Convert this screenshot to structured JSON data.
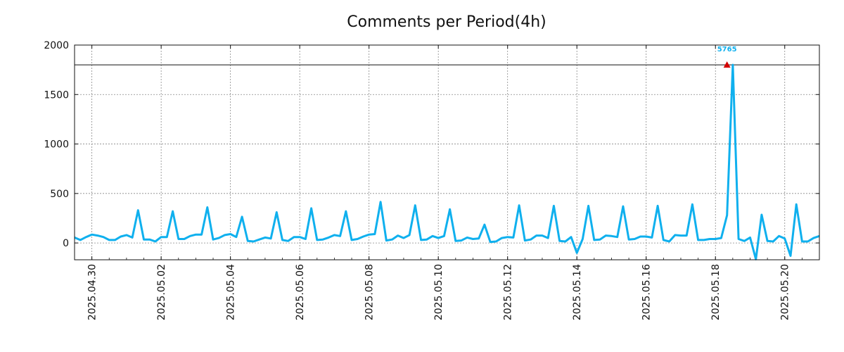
{
  "chart_data": {
    "type": "line",
    "title": "Comments per Period(4h)",
    "xlabel": "",
    "ylabel": "",
    "interval_hours": 4,
    "x_start": "2025-04-29 12:00",
    "x_end": "2025-05-21 00:00",
    "ylim": [
      -170,
      2000
    ],
    "yticks": [
      0,
      500,
      1000,
      1500,
      2000
    ],
    "xticks": [
      "2025.04.30",
      "2025.05.02",
      "2025.05.04",
      "2025.05.06",
      "2025.05.08",
      "2025.05.10",
      "2025.05.12",
      "2025.05.14",
      "2025.05.16",
      "2025.05.18",
      "2025.05.20"
    ],
    "grid": true,
    "cap_line": 1800,
    "series": [
      {
        "color": "#0fb0ee",
        "x": [
          "2025-04-29 12:00",
          "2025-04-29 16:00",
          "2025-04-29 20:00",
          "2025-04-30 00:00",
          "2025-04-30 04:00",
          "2025-04-30 08:00",
          "2025-04-30 12:00",
          "2025-04-30 16:00",
          "2025-04-30 20:00",
          "2025-05-01 00:00",
          "2025-05-01 04:00",
          "2025-05-01 08:00",
          "2025-05-01 12:00",
          "2025-05-01 16:00",
          "2025-05-01 20:00",
          "2025-05-02 00:00",
          "2025-05-02 04:00",
          "2025-05-02 08:00",
          "2025-05-02 12:00",
          "2025-05-02 16:00",
          "2025-05-02 20:00",
          "2025-05-03 00:00",
          "2025-05-03 04:00",
          "2025-05-03 08:00",
          "2025-05-03 12:00",
          "2025-05-03 16:00",
          "2025-05-03 20:00",
          "2025-05-04 00:00",
          "2025-05-04 04:00",
          "2025-05-04 08:00",
          "2025-05-04 12:00",
          "2025-05-04 16:00",
          "2025-05-04 20:00",
          "2025-05-05 00:00",
          "2025-05-05 04:00",
          "2025-05-05 08:00",
          "2025-05-05 12:00",
          "2025-05-05 16:00",
          "2025-05-05 20:00",
          "2025-05-06 00:00",
          "2025-05-06 04:00",
          "2025-05-06 08:00",
          "2025-05-06 12:00",
          "2025-05-06 16:00",
          "2025-05-06 20:00",
          "2025-05-07 00:00",
          "2025-05-07 04:00",
          "2025-05-07 08:00",
          "2025-05-07 12:00",
          "2025-05-07 16:00",
          "2025-05-07 20:00",
          "2025-05-08 00:00",
          "2025-05-08 04:00",
          "2025-05-08 08:00",
          "2025-05-08 12:00",
          "2025-05-08 16:00",
          "2025-05-08 20:00",
          "2025-05-09 00:00",
          "2025-05-09 04:00",
          "2025-05-09 08:00",
          "2025-05-09 12:00",
          "2025-05-09 16:00",
          "2025-05-09 20:00",
          "2025-05-10 00:00",
          "2025-05-10 04:00",
          "2025-05-10 08:00",
          "2025-05-10 12:00",
          "2025-05-10 16:00",
          "2025-05-10 20:00",
          "2025-05-11 00:00",
          "2025-05-11 04:00",
          "2025-05-11 08:00",
          "2025-05-11 12:00",
          "2025-05-11 16:00",
          "2025-05-11 20:00",
          "2025-05-12 00:00",
          "2025-05-12 04:00",
          "2025-05-12 08:00",
          "2025-05-12 12:00",
          "2025-05-12 16:00",
          "2025-05-12 20:00",
          "2025-05-13 00:00",
          "2025-05-13 04:00",
          "2025-05-13 08:00",
          "2025-05-13 12:00",
          "2025-05-13 16:00",
          "2025-05-13 20:00",
          "2025-05-14 00:00",
          "2025-05-14 04:00",
          "2025-05-14 08:00",
          "2025-05-14 12:00",
          "2025-05-14 16:00",
          "2025-05-14 20:00",
          "2025-05-15 00:00",
          "2025-05-15 04:00",
          "2025-05-15 08:00",
          "2025-05-15 12:00",
          "2025-05-15 16:00",
          "2025-05-15 20:00",
          "2025-05-16 00:00",
          "2025-05-16 04:00",
          "2025-05-16 08:00",
          "2025-05-16 12:00",
          "2025-05-16 16:00",
          "2025-05-16 20:00",
          "2025-05-17 00:00",
          "2025-05-17 04:00",
          "2025-05-17 08:00",
          "2025-05-17 12:00",
          "2025-05-17 16:00",
          "2025-05-17 20:00",
          "2025-05-18 00:00",
          "2025-05-18 04:00",
          "2025-05-18 08:00",
          "2025-05-18 12:00",
          "2025-05-18 16:00",
          "2025-05-18 20:00",
          "2025-05-19 00:00",
          "2025-05-19 04:00",
          "2025-05-19 08:00",
          "2025-05-19 12:00",
          "2025-05-19 16:00",
          "2025-05-19 20:00",
          "2025-05-20 00:00",
          "2025-05-20 04:00",
          "2025-05-20 08:00",
          "2025-05-20 12:00",
          "2025-05-20 16:00",
          "2025-05-20 20:00",
          "2025-05-21 00:00"
        ],
        "values": [
          55,
          30,
          60,
          85,
          75,
          60,
          30,
          30,
          65,
          80,
          55,
          330,
          35,
          35,
          15,
          60,
          60,
          320,
          40,
          40,
          70,
          85,
          85,
          360,
          35,
          50,
          80,
          90,
          60,
          265,
          20,
          15,
          35,
          55,
          45,
          310,
          30,
          20,
          60,
          60,
          40,
          350,
          30,
          35,
          55,
          80,
          70,
          320,
          30,
          40,
          65,
          85,
          90,
          415,
          25,
          35,
          75,
          50,
          80,
          380,
          30,
          35,
          70,
          50,
          70,
          340,
          20,
          25,
          55,
          40,
          45,
          185,
          10,
          15,
          50,
          60,
          55,
          380,
          25,
          35,
          75,
          75,
          50,
          375,
          20,
          15,
          60,
          -100,
          40,
          375,
          30,
          35,
          75,
          70,
          60,
          370,
          35,
          40,
          65,
          65,
          55,
          375,
          30,
          15,
          80,
          75,
          75,
          390,
          30,
          30,
          40,
          40,
          50,
          280,
          1800,
          40,
          20,
          55,
          -165,
          285,
          20,
          15,
          70,
          45,
          -130,
          390,
          15,
          15,
          50,
          70
        ]
      }
    ],
    "annotations": [
      {
        "x": "2025-05-18 08:00",
        "y": 1800,
        "text": "5765",
        "marker": "triangle-up",
        "marker_color": "#d40000",
        "text_color": "#0fb0ee"
      }
    ]
  }
}
